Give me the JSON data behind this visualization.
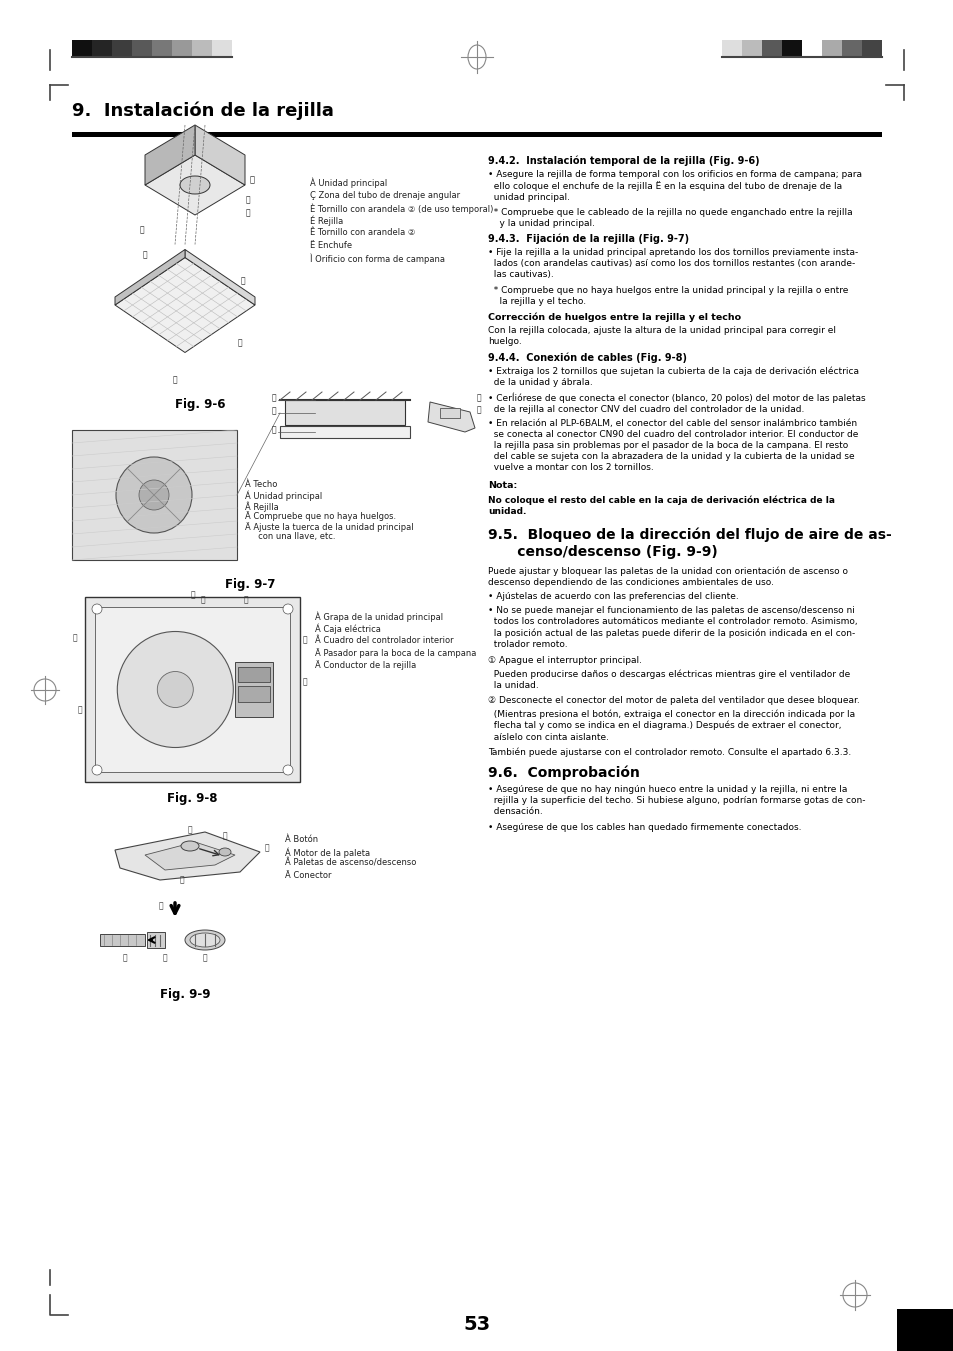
{
  "page_bg": "#ffffff",
  "title": "9.  Instalación de la rejilla",
  "page_number": "53",
  "fig96_caption": "Fig. 9-6",
  "fig97_caption": "Fig. 9-7",
  "fig98_caption": "Fig. 9-8",
  "fig99_caption": "Fig. 9-9",
  "fig96_labels": [
    "À Unidad principal",
    "Ç Zona del tubo de drenaje angular",
    "È Tornillo con arandela ② (de uso temporal)",
    "É Rejilla",
    "Ê Tornillo con arandela ②",
    "Ë Enchufe",
    "Ì Orificio con forma de campana"
  ],
  "fig97_labels": [
    "À Techo",
    "Á Unidad principal",
    "Â Rejilla",
    "Ã Compruebe que no haya huelgos.",
    "Ä Ajuste la tuerca de la unidad principal",
    "     con una llave, etc."
  ],
  "fig98_labels": [
    "À Grapa de la unidad principal",
    "Á Caja eléctrica",
    "Â Cuadro del controlador interior",
    "Ã Pasador para la boca de la campana",
    "Ä Conductor de la rejilla"
  ],
  "fig99_labels": [
    "À Botón",
    "Á Motor de la paleta",
    "Â Paletas de ascenso/descenso",
    "Ã Conector"
  ],
  "right_col_blocks": [
    {
      "text": "9.4.2.  Instalación temporal de la rejilla (Fig. 9-6)",
      "bold": true,
      "size": 7.0,
      "indent": 0
    },
    {
      "text": "• Asegure la rejilla de forma temporal con los orificios en forma de campana; para\n  ello coloque el enchufe de la rejilla Ë en la esquina del tubo de drenaje de la\n  unidad principal.",
      "bold": false,
      "size": 6.5,
      "indent": 0
    },
    {
      "text": "  * Compruebe que le cableado de la rejilla no quede enganchado entre la rejilla\n    y la unidad principal.",
      "bold": false,
      "size": 6.5,
      "indent": 0
    },
    {
      "text": "9.4.3.  Fijación de la rejilla (Fig. 9-7)",
      "bold": true,
      "size": 7.0,
      "indent": 0
    },
    {
      "text": "• Fije la rejilla a la unidad principal apretando los dos tornillos previamente insta-\n  lados (con arandelas cautivas) así como los dos tornillos restantes (con arande-\n  las cautivas).",
      "bold": false,
      "size": 6.5,
      "indent": 0
    },
    {
      "text": "  * Compruebe que no haya huelgos entre la unidad principal y la rejilla o entre\n    la rejilla y el techo.",
      "bold": false,
      "size": 6.5,
      "indent": 0
    },
    {
      "text": "Corrección de huelgos entre la rejilla y el techo",
      "bold": true,
      "size": 6.8,
      "indent": 0
    },
    {
      "text": "Con la rejilla colocada, ajuste la altura de la unidad principal para corregir el\nhuelgo.",
      "bold": false,
      "size": 6.5,
      "indent": 0
    },
    {
      "text": "9.4.4.  Conexión de cables (Fig. 9-8)",
      "bold": true,
      "size": 7.0,
      "indent": 0
    },
    {
      "text": "• Extraiga los 2 tornillos que sujetan la cubierta de la caja de derivación eléctrica\n  de la unidad y ábrala.",
      "bold": false,
      "size": 6.5,
      "indent": 0
    },
    {
      "text": "• CerÍiórese de que conecta el conector (blanco, 20 polos) del motor de las paletas\n  de la rejilla al conector CNV del cuadro del controlador de la unidad.",
      "bold": false,
      "size": 6.5,
      "indent": 0
    },
    {
      "text": "• En relación al PLP-6BALM, el conector del cable del sensor inalámbrico también\n  se conecta al conector CN90 del cuadro del controlador interior. El conductor de\n  la rejilla pasa sin problemas por el pasador de la boca de la campana. El resto\n  del cable se sujeta con la abrazadera de la unidad y la cubierta de la unidad se\n  vuelve a montar con los 2 tornillos.",
      "bold": false,
      "size": 6.5,
      "indent": 0
    },
    {
      "text": "Nota:",
      "bold": true,
      "size": 6.8,
      "indent": 0
    },
    {
      "text": "No coloque el resto del cable en la caja de derivación eléctrica de la\nunidad.",
      "bold": true,
      "size": 6.5,
      "indent": 0
    },
    {
      "text": "9.5.  Bloqueo de la dirección del flujo de aire de as-\n      censo/descenso (Fig. 9-9)",
      "bold": true,
      "size": 10.0,
      "indent": 0,
      "extra_before": 6
    },
    {
      "text": "Puede ajustar y bloquear las paletas de la unidad con orientación de ascenso o\ndescenso dependiendo de las condiciones ambientales de uso.",
      "bold": false,
      "size": 6.5,
      "indent": 0
    },
    {
      "text": "• Ajústelas de acuerdo con las preferencias del cliente.",
      "bold": false,
      "size": 6.5,
      "indent": 0
    },
    {
      "text": "• No se puede manejar el funcionamiento de las paletas de ascenso/descenso ni\n  todos los controladores automáticos mediante el controlador remoto. Asimismo,\n  la posición actual de las paletas puede diferir de la posición indicada en el con-\n  trolador remoto.",
      "bold": false,
      "size": 6.5,
      "indent": 0
    },
    {
      "text": "① Apague el interruptor principal.",
      "bold": false,
      "size": 6.5,
      "indent": 0
    },
    {
      "text": "  Pueden producirse daños o descargas eléctricas mientras gire el ventilador de\n  la unidad.",
      "bold": false,
      "size": 6.5,
      "indent": 0
    },
    {
      "text": "② Desconecte el conector del motor de paleta del ventilador que desee bloquear.",
      "bold": false,
      "size": 6.5,
      "indent": 0
    },
    {
      "text": "  (Mientras presiona el botón, extraiga el conector en la dirección indicada por la\n  flecha tal y como se indica en el diagrama.) Después de extraer el conector,\n  aíslelo con cinta aislante.",
      "bold": false,
      "size": 6.5,
      "indent": 0
    },
    {
      "text": "También puede ajustarse con el controlador remoto. Consulte el apartado 6.3.3.",
      "bold": false,
      "size": 6.5,
      "indent": 0
    },
    {
      "text": "9.6.  Comprobación",
      "bold": true,
      "size": 10.0,
      "indent": 0,
      "extra_before": 4
    },
    {
      "text": "• Asegúrese de que no hay ningún hueco entre la unidad y la rejilla, ni entre la\n  rejilla y la superficie del techo. Si hubiese alguno, podrían formarse gotas de con-\n  densación.",
      "bold": false,
      "size": 6.5,
      "indent": 0
    },
    {
      "text": "• Asegúrese de que los cables han quedado firmemente conectados.",
      "bold": false,
      "size": 6.5,
      "indent": 0
    }
  ]
}
